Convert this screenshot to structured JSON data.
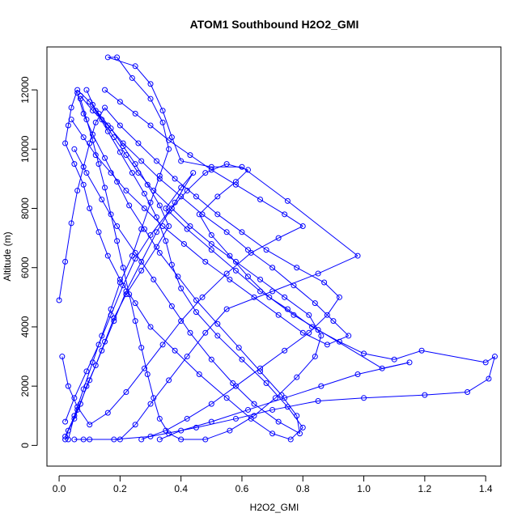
{
  "chart_data": {
    "type": "line",
    "title": "ATOM1 Southbound H2O2_GMI",
    "xlabel": "H2O2_GMI",
    "ylabel": "Altitude (m)",
    "xlim": [
      -0.04,
      1.45
    ],
    "ylim": [
      -700,
      13450
    ],
    "xticks": [
      {
        "value": 0.0,
        "label": "0.0"
      },
      {
        "value": 0.2,
        "label": "0.2"
      },
      {
        "value": 0.4,
        "label": "0.4"
      },
      {
        "value": 0.6,
        "label": "0.6"
      },
      {
        "value": 0.8,
        "label": "0.8"
      },
      {
        "value": 1.0,
        "label": "1.0"
      },
      {
        "value": 1.2,
        "label": "1.2"
      },
      {
        "value": 1.4,
        "label": "1.4"
      }
    ],
    "yticks": [
      {
        "value": 0,
        "label": "0"
      },
      {
        "value": 2000,
        "label": "2000"
      },
      {
        "value": 4000,
        "label": "4000"
      },
      {
        "value": 6000,
        "label": "6000"
      },
      {
        "value": 8000,
        "label": "8000"
      },
      {
        "value": 10000,
        "label": "10000"
      },
      {
        "value": 12000,
        "label": "12000"
      }
    ],
    "grid": false,
    "marker": "open-circle",
    "color": "#0000ff",
    "series": [
      {
        "values": [
          [
            0.02,
            200
          ],
          [
            0.03,
            500
          ],
          [
            0.05,
            900
          ],
          [
            0.07,
            1400
          ],
          [
            0.09,
            2000
          ],
          [
            0.12,
            2700
          ],
          [
            0.15,
            3500
          ],
          [
            0.18,
            4300
          ],
          [
            0.22,
            5100
          ],
          [
            0.27,
            5900
          ],
          [
            0.32,
            6700
          ],
          [
            0.36,
            7400
          ],
          [
            0.33,
            8100
          ],
          [
            0.29,
            8800
          ],
          [
            0.25,
            9500
          ],
          [
            0.21,
            10100
          ],
          [
            0.17,
            10700
          ],
          [
            0.13,
            11200
          ],
          [
            0.1,
            11600
          ],
          [
            0.06,
            12000
          ],
          [
            0.04,
            11400
          ],
          [
            0.03,
            10800
          ],
          [
            0.02,
            10200
          ],
          [
            0.05,
            9500
          ],
          [
            0.08,
            8800
          ],
          [
            0.1,
            8000
          ],
          [
            0.13,
            7200
          ],
          [
            0.16,
            6400
          ],
          [
            0.2,
            5600
          ],
          [
            0.25,
            4800
          ],
          [
            0.3,
            4000
          ],
          [
            0.38,
            3200
          ],
          [
            0.46,
            2400
          ],
          [
            0.55,
            1600
          ],
          [
            0.63,
            900
          ],
          [
            0.7,
            400
          ],
          [
            0.76,
            200
          ],
          [
            0.8,
            600
          ],
          [
            0.75,
            1300
          ],
          [
            0.68,
            2100
          ],
          [
            0.6,
            2900
          ],
          [
            0.52,
            3700
          ],
          [
            0.45,
            4500
          ],
          [
            0.4,
            5300
          ],
          [
            0.37,
            6100
          ],
          [
            0.35,
            6900
          ],
          [
            0.32,
            7700
          ],
          [
            0.28,
            8500
          ],
          [
            0.24,
            9200
          ],
          [
            0.2,
            9900
          ],
          [
            0.16,
            10600
          ],
          [
            0.12,
            11300
          ],
          [
            0.09,
            12000
          ]
        ]
      },
      {
        "values": [
          [
            0.03,
            200
          ],
          [
            0.05,
            1000
          ],
          [
            0.08,
            1900
          ],
          [
            0.11,
            2800
          ],
          [
            0.14,
            3700
          ],
          [
            0.17,
            4600
          ],
          [
            0.2,
            5500
          ],
          [
            0.24,
            6400
          ],
          [
            0.27,
            7300
          ],
          [
            0.3,
            8200
          ],
          [
            0.33,
            9100
          ],
          [
            0.36,
            10000
          ],
          [
            0.34,
            10900
          ],
          [
            0.3,
            11700
          ],
          [
            0.24,
            12400
          ],
          [
            0.19,
            13100
          ],
          [
            0.16,
            13100
          ],
          [
            0.25,
            12800
          ],
          [
            0.3,
            12200
          ],
          [
            0.34,
            11300
          ],
          [
            0.37,
            10400
          ],
          [
            0.4,
            9600
          ],
          [
            0.5,
            9400
          ],
          [
            0.6,
            9400
          ],
          [
            0.75,
            8250
          ],
          [
            0.98,
            6400
          ],
          [
            0.85,
            5800
          ],
          [
            0.7,
            5200
          ],
          [
            0.55,
            4600
          ],
          [
            0.48,
            3800
          ],
          [
            0.42,
            3000
          ],
          [
            0.36,
            2200
          ],
          [
            0.3,
            1400
          ],
          [
            0.25,
            700
          ],
          [
            0.2,
            200
          ],
          [
            0.1,
            200
          ],
          [
            0.05,
            200
          ]
        ]
      },
      {
        "values": [
          [
            0.02,
            300
          ],
          [
            0.06,
            1200
          ],
          [
            0.1,
            2200
          ],
          [
            0.14,
            3200
          ],
          [
            0.18,
            4200
          ],
          [
            0.22,
            5200
          ],
          [
            0.27,
            6200
          ],
          [
            0.32,
            7200
          ],
          [
            0.38,
            8200
          ],
          [
            0.44,
            9200
          ],
          [
            0.4,
            8700
          ],
          [
            0.35,
            8000
          ],
          [
            0.42,
            7300
          ],
          [
            0.5,
            6600
          ],
          [
            0.58,
            5900
          ],
          [
            0.66,
            5200
          ],
          [
            0.75,
            4600
          ],
          [
            0.83,
            4000
          ],
          [
            0.92,
            3500
          ],
          [
            1.0,
            3100
          ],
          [
            1.1,
            2900
          ],
          [
            1.19,
            3200
          ],
          [
            1.4,
            2800
          ],
          [
            1.43,
            3000
          ],
          [
            1.41,
            2250
          ],
          [
            1.34,
            1800
          ],
          [
            1.2,
            1700
          ],
          [
            1.0,
            1600
          ],
          [
            0.85,
            1500
          ],
          [
            0.7,
            1200
          ],
          [
            0.58,
            900
          ],
          [
            0.45,
            600
          ],
          [
            0.3,
            300
          ],
          [
            0.18,
            200
          ],
          [
            0.08,
            200
          ]
        ]
      },
      {
        "values": [
          [
            0.0,
            4900
          ],
          [
            0.02,
            6200
          ],
          [
            0.04,
            7500
          ],
          [
            0.06,
            8600
          ],
          [
            0.08,
            9400
          ],
          [
            0.1,
            10200
          ],
          [
            0.12,
            10900
          ],
          [
            0.15,
            11400
          ],
          [
            0.2,
            10800
          ],
          [
            0.26,
            10200
          ],
          [
            0.32,
            9600
          ],
          [
            0.38,
            9000
          ],
          [
            0.45,
            8400
          ],
          [
            0.52,
            7800
          ],
          [
            0.6,
            7200
          ],
          [
            0.68,
            6600
          ],
          [
            0.78,
            6000
          ],
          [
            0.87,
            5500
          ],
          [
            0.92,
            5000
          ],
          [
            0.88,
            4400
          ],
          [
            0.82,
            3800
          ],
          [
            0.74,
            3200
          ],
          [
            0.66,
            2600
          ],
          [
            0.58,
            2000
          ],
          [
            0.5,
            1400
          ],
          [
            0.42,
            900
          ],
          [
            0.35,
            500
          ],
          [
            0.27,
            200
          ]
        ]
      },
      {
        "values": [
          [
            0.01,
            3000
          ],
          [
            0.03,
            2000
          ],
          [
            0.06,
            1300
          ],
          [
            0.1,
            700
          ],
          [
            0.16,
            1100
          ],
          [
            0.22,
            1800
          ],
          [
            0.28,
            2600
          ],
          [
            0.34,
            3400
          ],
          [
            0.4,
            4200
          ],
          [
            0.47,
            5000
          ],
          [
            0.55,
            5800
          ],
          [
            0.63,
            6500
          ],
          [
            0.72,
            7000
          ],
          [
            0.8,
            7400
          ],
          [
            0.74,
            7800
          ],
          [
            0.66,
            8300
          ],
          [
            0.58,
            8800
          ],
          [
            0.5,
            9300
          ],
          [
            0.43,
            9800
          ],
          [
            0.36,
            10300
          ],
          [
            0.3,
            10800
          ],
          [
            0.25,
            11200
          ],
          [
            0.2,
            11600
          ],
          [
            0.15,
            12000
          ]
        ]
      },
      {
        "values": [
          [
            0.04,
            11000
          ],
          [
            0.08,
            10400
          ],
          [
            0.12,
            9800
          ],
          [
            0.17,
            9200
          ],
          [
            0.22,
            8600
          ],
          [
            0.28,
            8000
          ],
          [
            0.34,
            7400
          ],
          [
            0.41,
            6800
          ],
          [
            0.48,
            6200
          ],
          [
            0.56,
            5600
          ],
          [
            0.64,
            5000
          ],
          [
            0.72,
            4400
          ],
          [
            0.8,
            3800
          ],
          [
            0.88,
            3400
          ],
          [
            0.95,
            3700
          ],
          [
            0.9,
            4200
          ],
          [
            0.84,
            4800
          ],
          [
            0.77,
            5400
          ],
          [
            0.7,
            6000
          ],
          [
            0.62,
            6600
          ],
          [
            0.55,
            7200
          ],
          [
            0.47,
            7800
          ],
          [
            0.4,
            8400
          ],
          [
            0.33,
            9000
          ],
          [
            0.27,
            9600
          ],
          [
            0.21,
            10200
          ],
          [
            0.16,
            10800
          ],
          [
            0.11,
            11300
          ],
          [
            0.07,
            11800
          ]
        ]
      },
      {
        "values": [
          [
            0.02,
            800
          ],
          [
            0.05,
            1600
          ],
          [
            0.09,
            2500
          ],
          [
            0.13,
            3400
          ],
          [
            0.17,
            4400
          ],
          [
            0.21,
            5400
          ],
          [
            0.25,
            6300
          ],
          [
            0.3,
            7100
          ],
          [
            0.36,
            7900
          ],
          [
            0.42,
            8600
          ],
          [
            0.48,
            9200
          ],
          [
            0.55,
            9500
          ],
          [
            0.62,
            9300
          ],
          [
            0.58,
            8900
          ],
          [
            0.52,
            8400
          ],
          [
            0.46,
            7800
          ],
          [
            0.5,
            7100
          ],
          [
            0.56,
            6400
          ],
          [
            0.62,
            5700
          ],
          [
            0.69,
            5000
          ],
          [
            0.77,
            4400
          ],
          [
            0.85,
            3900
          ],
          [
            1.06,
            2600
          ],
          [
            1.15,
            2800
          ],
          [
            0.98,
            2400
          ],
          [
            0.86,
            2000
          ],
          [
            0.74,
            1600
          ],
          [
            0.62,
            1200
          ],
          [
            0.5,
            800
          ],
          [
            0.4,
            500
          ],
          [
            0.33,
            200
          ]
        ]
      },
      {
        "values": [
          [
            0.07,
            11700
          ],
          [
            0.09,
            11000
          ],
          [
            0.11,
            10300
          ],
          [
            0.13,
            9500
          ],
          [
            0.15,
            8700
          ],
          [
            0.17,
            7800
          ],
          [
            0.19,
            6900
          ],
          [
            0.21,
            6000
          ],
          [
            0.23,
            5100
          ],
          [
            0.25,
            4200
          ],
          [
            0.27,
            3300
          ],
          [
            0.29,
            2400
          ],
          [
            0.31,
            1600
          ],
          [
            0.33,
            900
          ],
          [
            0.36,
            400
          ],
          [
            0.4,
            200
          ],
          [
            0.48,
            200
          ],
          [
            0.56,
            500
          ],
          [
            0.64,
            1000
          ],
          [
            0.71,
            1600
          ],
          [
            0.78,
            2300
          ],
          [
            0.84,
            3000
          ],
          [
            0.86,
            3700
          ],
          [
            0.82,
            4400
          ],
          [
            0.74,
            5000
          ],
          [
            0.66,
            5600
          ],
          [
            0.58,
            6200
          ],
          [
            0.5,
            6800
          ],
          [
            0.43,
            7400
          ],
          [
            0.37,
            8000
          ],
          [
            0.31,
            8600
          ],
          [
            0.26,
            9200
          ],
          [
            0.22,
            9800
          ],
          [
            0.18,
            10400
          ],
          [
            0.14,
            11000
          ],
          [
            0.11,
            11500
          ]
        ]
      },
      {
        "values": [
          [
            0.05,
            10000
          ],
          [
            0.09,
            9200
          ],
          [
            0.14,
            8300
          ],
          [
            0.19,
            7400
          ],
          [
            0.25,
            6500
          ],
          [
            0.31,
            5600
          ],
          [
            0.37,
            4700
          ],
          [
            0.43,
            3800
          ],
          [
            0.5,
            2900
          ],
          [
            0.57,
            2100
          ],
          [
            0.64,
            1400
          ],
          [
            0.72,
            800
          ],
          [
            0.79,
            400
          ],
          [
            0.78,
            1000
          ],
          [
            0.73,
            1700
          ],
          [
            0.66,
            2500
          ],
          [
            0.59,
            3300
          ],
          [
            0.52,
            4100
          ],
          [
            0.45,
            4900
          ],
          [
            0.39,
            5700
          ],
          [
            0.33,
            6500
          ],
          [
            0.28,
            7300
          ],
          [
            0.23,
            8100
          ],
          [
            0.19,
            8900
          ],
          [
            0.15,
            9700
          ],
          [
            0.11,
            10500
          ],
          [
            0.08,
            11200
          ],
          [
            0.06,
            11900
          ]
        ]
      }
    ]
  }
}
